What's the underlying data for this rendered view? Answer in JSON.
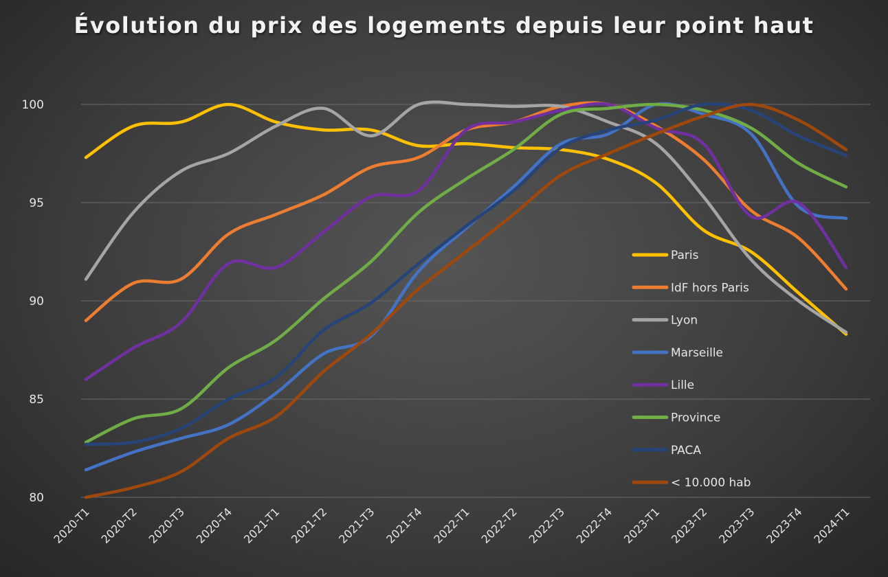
{
  "chart_data": {
    "type": "line",
    "title": "Évolution du prix des logements depuis leur point haut",
    "xlabel": "",
    "ylabel": "",
    "ylim": [
      80,
      100
    ],
    "yticks": [
      "80",
      "85",
      "90",
      "95",
      "100"
    ],
    "grid": true,
    "legend_position": "right",
    "categories": [
      "2020-T1",
      "2020-T2",
      "2020-T3",
      "2020-T4",
      "2021-T1",
      "2021-T2",
      "2021-T3",
      "2021-T4",
      "2022-T1",
      "2022-T2",
      "2022-T3",
      "2022-T4",
      "2023-T1",
      "2023-T2",
      "2023-T3",
      "2023-T4",
      "2024-T1"
    ],
    "series": [
      {
        "name": "Paris",
        "color": "#FFC000",
        "values": [
          97.3,
          98.9,
          99.1,
          100.0,
          99.1,
          98.7,
          98.7,
          97.9,
          98.0,
          97.8,
          97.7,
          97.2,
          96.0,
          93.6,
          92.5,
          90.4,
          88.3
        ]
      },
      {
        "name": "IdF hors Paris",
        "color": "#ED7D31",
        "values": [
          89.0,
          90.9,
          91.1,
          93.4,
          94.4,
          95.4,
          96.8,
          97.3,
          98.7,
          99.1,
          99.9,
          100.0,
          98.9,
          97.2,
          94.6,
          93.2,
          90.6
        ]
      },
      {
        "name": "Lyon",
        "color": "#A5A5A5",
        "values": [
          91.1,
          94.5,
          96.6,
          97.5,
          98.9,
          99.8,
          98.4,
          100.0,
          100.0,
          99.9,
          99.9,
          99.1,
          98.0,
          95.3,
          92.1,
          90.0,
          88.4
        ]
      },
      {
        "name": "Marseille",
        "color": "#4472C4",
        "values": [
          81.4,
          82.3,
          83.0,
          83.7,
          85.3,
          87.3,
          88.2,
          91.5,
          93.7,
          95.8,
          98.0,
          98.5,
          100.0,
          99.5,
          98.5,
          94.8,
          94.2
        ]
      },
      {
        "name": "Lille",
        "color": "#7030A0",
        "values": [
          86.0,
          87.6,
          88.9,
          91.9,
          91.7,
          93.5,
          95.3,
          95.6,
          98.7,
          99.1,
          99.7,
          100.0,
          98.8,
          98.0,
          94.3,
          95.0,
          91.7
        ]
      },
      {
        "name": "Province",
        "color": "#70AD47",
        "values": [
          82.8,
          84.0,
          84.5,
          86.6,
          88.0,
          90.1,
          92.0,
          94.5,
          96.2,
          97.7,
          99.5,
          99.8,
          100.0,
          99.7,
          98.8,
          97.0,
          95.8
        ]
      },
      {
        "name": "PACA",
        "color": "#264478",
        "values": [
          82.7,
          82.8,
          83.5,
          85.0,
          86.1,
          88.5,
          89.9,
          91.9,
          93.8,
          95.6,
          97.8,
          98.7,
          99.2,
          100.0,
          99.7,
          98.4,
          97.4
        ]
      },
      {
        "name": "< 10.000 hab",
        "color": "#9E480E",
        "values": [
          80.0,
          80.5,
          81.3,
          83.0,
          84.1,
          86.4,
          88.3,
          90.6,
          92.5,
          94.4,
          96.4,
          97.5,
          98.5,
          99.4,
          100.0,
          99.2,
          97.7
        ]
      }
    ]
  }
}
